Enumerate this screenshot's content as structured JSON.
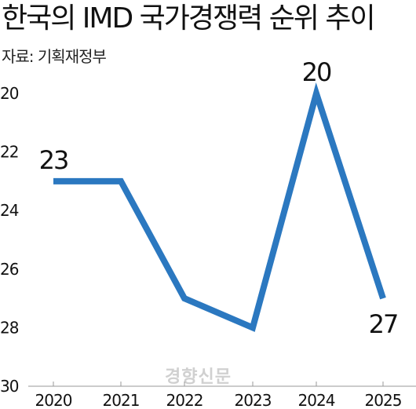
{
  "title": "한국의 IMD 국가경쟁력  순위 추이",
  "source": "자료: 기획재정부",
  "watermark": "경향신문",
  "chart_data": {
    "type": "line",
    "title": "한국의 IMD 국가경쟁력  순위 추이",
    "x": [
      "2020",
      "2021",
      "2022",
      "2023",
      "2024",
      "2025"
    ],
    "series": [
      {
        "values": [
          23,
          23,
          27,
          28,
          20,
          27
        ]
      }
    ],
    "data_labels": [
      {
        "x": "2020",
        "text": "23"
      },
      {
        "x": "2024",
        "text": "20"
      },
      {
        "x": "2025",
        "text": "27"
      }
    ],
    "ylim": [
      20,
      30
    ],
    "y_inverted": true,
    "yticks": [
      20,
      22,
      24,
      26,
      28,
      30
    ],
    "xlabel": "",
    "ylabel": "",
    "grid": false,
    "legend": "none",
    "line_color": "#2b78c0"
  }
}
